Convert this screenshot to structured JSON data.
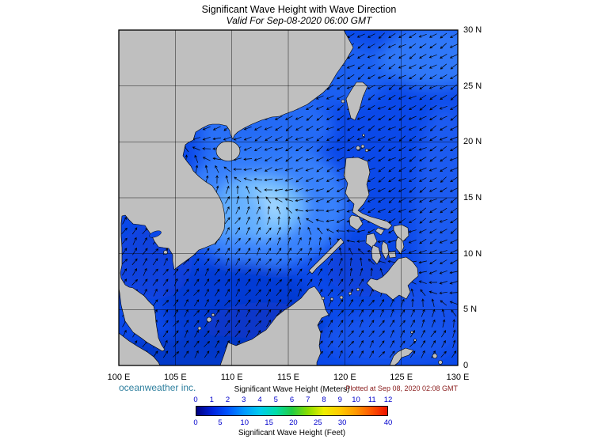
{
  "header": {
    "title": "Significant Wave Height with Wave Direction",
    "subtitle": "Valid For Sep-08-2020 06:00 GMT"
  },
  "map": {
    "lat_labels": [
      "30 N",
      "25 N",
      "20 N",
      "15 N",
      "10 N",
      "5 N",
      "0"
    ],
    "lon_labels": [
      "100 E",
      "105 E",
      "110 E",
      "115 E",
      "120 E",
      "125 E",
      "130 E"
    ],
    "land_color": "#bfbfbf",
    "ocean_base_color": "#0b49e9",
    "arrow_color": "#000000"
  },
  "footer": {
    "credit": "oceanweather inc.",
    "plotted": "Plotted at Sep 08, 2020 02:08 GMT"
  },
  "legend": {
    "meters_title": "Significant Wave Height (Meters)",
    "feet_title": "Significant Wave Height (Feet)",
    "meters_ticks": [
      0,
      1,
      2,
      3,
      4,
      5,
      6,
      7,
      8,
      9,
      10,
      11,
      12
    ],
    "feet_ticks": [
      0,
      5,
      10,
      15,
      20,
      25,
      30,
      40
    ],
    "gradient_colors": [
      "#000080",
      "#0022dd",
      "#0055ff",
      "#0099ff",
      "#00ccee",
      "#00ddaa",
      "#22cc44",
      "#88dd00",
      "#eeee00",
      "#ffcc00",
      "#ff9900",
      "#ff5500",
      "#ee1100"
    ],
    "tick_color": "#0000cc"
  }
}
